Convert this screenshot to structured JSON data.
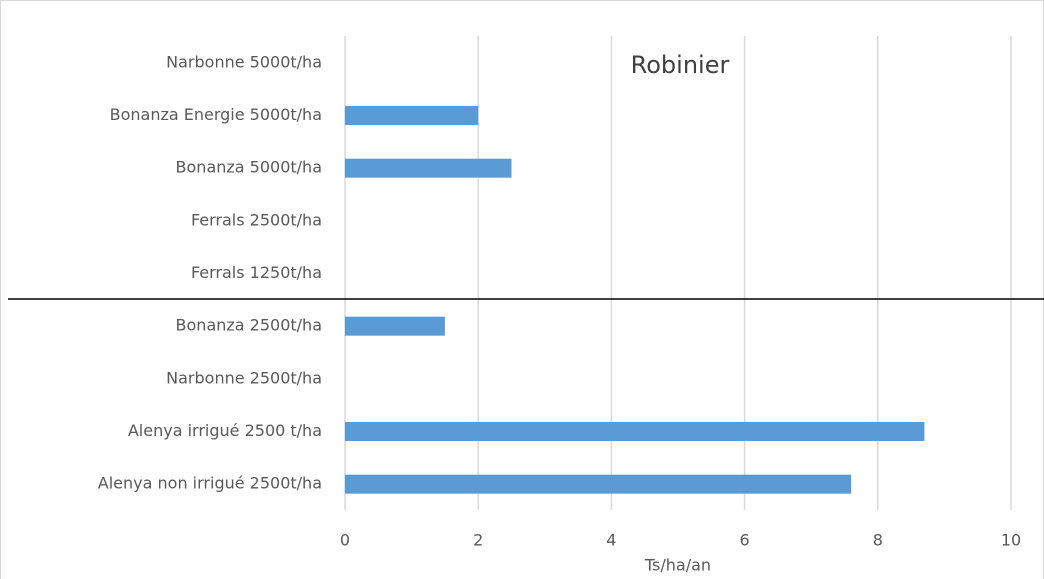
{
  "chart_data": {
    "type": "bar",
    "orientation": "horizontal",
    "title": "Robinier",
    "x_label": "Ts/ha/an",
    "categories": [
      "Narbonne 5000t/ha",
      "Bonanza Energie 5000t/ha",
      "Bonanza 5000t/ha",
      "Ferrals 2500t/ha",
      "Ferrals 1250t/ha",
      "Bonanza 2500t/ha",
      "Narbonne 2500t/ha",
      "Alenya irrigué 2500 t/ha",
      "Alenya non irrigué 2500t/ha"
    ],
    "values": [
      null,
      2,
      2.5,
      null,
      null,
      1.5,
      null,
      8.7,
      7.6
    ],
    "color": "#5b9bd5",
    "xlim": [
      0,
      10
    ],
    "xticks": [
      0,
      2,
      4,
      6,
      8,
      10
    ],
    "grid": true
  }
}
